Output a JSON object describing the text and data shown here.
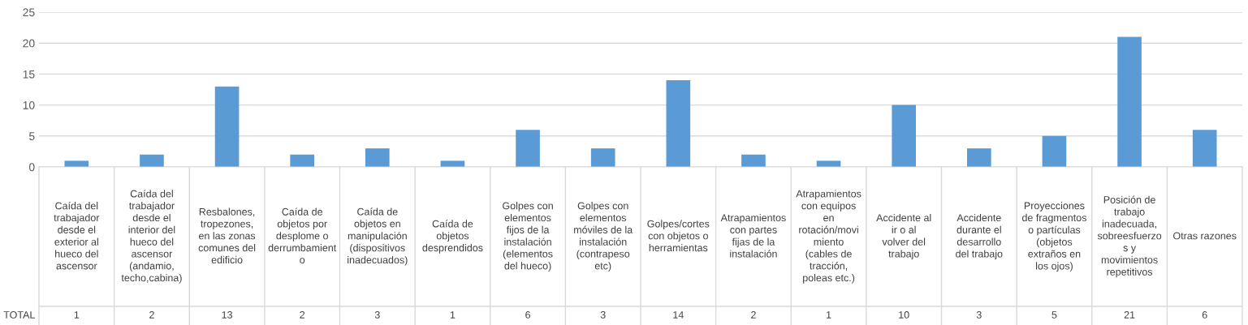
{
  "chart_data": {
    "type": "bar",
    "categories": [
      "Caída del trabajador desde el exterior al hueco del ascensor",
      "Caída del trabajador desde el interior del hueco del ascensor (andamio, techo,cabina)",
      "Resbalones, tropezones, en las zonas comunes del edificio",
      "Caída de objetos por desplome o derrumbamiento",
      "Caída de objetos en manipulación (dispositivos inadecuados)",
      "Caída de objetos desprendidos",
      "Golpes con elementos fijos de la instalación (elementos del hueco)",
      "Golpes con elementos móviles de la instalación (contrapeso etc)",
      "Golpes/cortes con objetos o herramientas",
      "Atrapamientos con partes fijas de la instalación",
      "Atrapamientos con equipos en rotación/movimiento (cables de tracción, poleas etc.)",
      "Accidente al ir o al volver del trabajo",
      "Accidente durante el desarrollo del trabajo",
      "Proyecciones de fragmentos o partículas (objetos extraños en los ojos)",
      "Posición de trabajo inadecuada, sobreesfuerzos y movimientos repetitivos",
      "Otras razones"
    ],
    "series": [
      {
        "name": "TOTAL",
        "color": "#5b9bd5",
        "values": [
          1,
          2,
          13,
          2,
          3,
          1,
          6,
          3,
          14,
          2,
          1,
          10,
          3,
          5,
          21,
          6
        ]
      }
    ],
    "ylim": [
      0,
      25
    ],
    "yticks": [
      0,
      5,
      10,
      15,
      20,
      25
    ],
    "grid": "y",
    "data_labels": true
  }
}
